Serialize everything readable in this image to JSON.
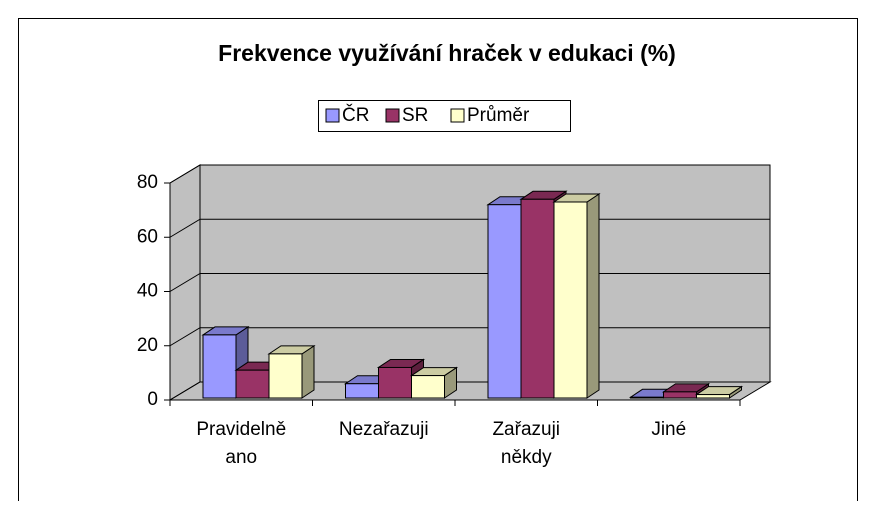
{
  "chart_data": {
    "type": "bar3d",
    "title": "Frekvence využívání hraček v edukaci (%)",
    "categories": [
      "Pravidelně ano",
      "Nezařazuji",
      "Zařazuji někdy",
      "Jiné"
    ],
    "series": [
      {
        "name": "ČR",
        "color": "#9999ff",
        "values": [
          24,
          6,
          72,
          1
        ]
      },
      {
        "name": "SR",
        "color": "#993366",
        "values": [
          11,
          12,
          74,
          3
        ]
      },
      {
        "name": "Průměr",
        "color": "#ffffcc",
        "values": [
          17,
          9,
          73,
          2
        ]
      }
    ],
    "ylim": [
      0,
      80
    ],
    "yticks": [
      0,
      20,
      40,
      60,
      80
    ],
    "grid": true,
    "legend": "top"
  }
}
